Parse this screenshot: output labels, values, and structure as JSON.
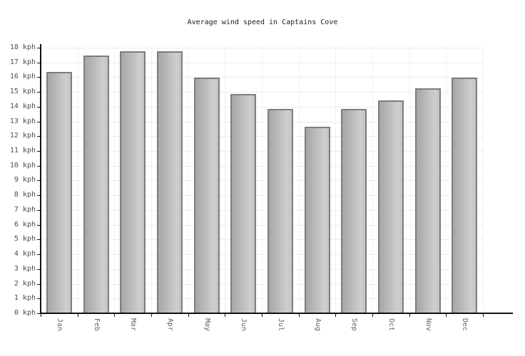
{
  "page": {
    "background": "#ffffff"
  },
  "chart_data": {
    "type": "bar",
    "title": "Average wind speed in Captains Cove",
    "categories": [
      "Jan",
      "Feb",
      "Mar",
      "Apr",
      "May",
      "Jun",
      "Jul",
      "Aug",
      "Sep",
      "Oct",
      "Nov",
      "Dec"
    ],
    "values": [
      16.3,
      17.4,
      17.7,
      17.7,
      15.9,
      14.8,
      13.8,
      12.6,
      13.8,
      14.4,
      15.2,
      15.9
    ],
    "series_name": "Average wind speed (kph)",
    "unit": "kph",
    "xlabel": "",
    "ylabel": "",
    "ylim": [
      0,
      18
    ],
    "ytick_step": 1,
    "ytick_label_format": "{n} kph",
    "grid": true,
    "legend_position": "none",
    "colors": {
      "bar_gradient_left": "#a6a6a6",
      "bar_gradient_right": "#cfcfcf",
      "bar_gradient_end": "#c2c2c2",
      "bar_border": "#7d7d7d",
      "axis": "#111111",
      "grid_horizontal": "#ececec",
      "grid_vertical": "#f2f2f2",
      "title_text": "#222222",
      "ytick_text": "#4d4d4d",
      "xtick_text": "#666666"
    }
  }
}
